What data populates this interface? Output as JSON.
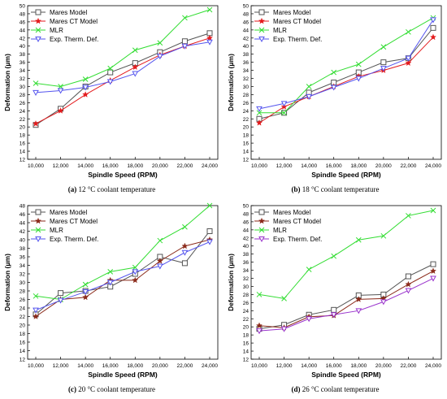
{
  "chart_data": [
    {
      "type": "line",
      "caption_label": "(a)",
      "caption_text": "12 °C coolant temperature",
      "xlabel": "Spindle Speed (RPM)",
      "ylabel": "Deformation (μm)",
      "ylim": [
        12,
        50
      ],
      "yticks": [
        12,
        14,
        16,
        18,
        20,
        22,
        24,
        26,
        28,
        30,
        32,
        34,
        36,
        38,
        40,
        42,
        44,
        46,
        48,
        50
      ],
      "x": [
        "10,000",
        "12,000",
        "14,000",
        "16,000",
        "18,000",
        "20,000",
        "22,000",
        "24,000"
      ],
      "legend_position": "top-left",
      "series": [
        {
          "name": "Mares Model",
          "color": "#555555",
          "marker": "square",
          "values": [
            20.5,
            24.5,
            30.0,
            33.5,
            35.8,
            38.5,
            41.2,
            43.2
          ]
        },
        {
          "name": "Mares CT Model",
          "color": "#e41a1c",
          "marker": "star",
          "values": [
            20.8,
            24.0,
            28.0,
            31.5,
            34.8,
            37.8,
            40.0,
            42.0
          ]
        },
        {
          "name": "MLR",
          "color": "#33dd33",
          "marker": "cross",
          "values": [
            30.8,
            30.0,
            31.8,
            34.5,
            39.0,
            40.8,
            47.0,
            49.0
          ]
        },
        {
          "name": "Exp. Therm. Def.",
          "color": "#5555ee",
          "marker": "triangle-down",
          "values": [
            28.5,
            29.0,
            29.8,
            31.2,
            33.2,
            37.5,
            40.0,
            41.0
          ]
        }
      ]
    },
    {
      "type": "line",
      "caption_label": "(b)",
      "caption_text": "18 °C coolant temperature",
      "xlabel": "Spindle Speed (RPM)",
      "ylabel": "Deformation (μm)",
      "ylim": [
        12,
        50
      ],
      "yticks": [
        12,
        14,
        16,
        18,
        20,
        22,
        24,
        26,
        28,
        30,
        32,
        34,
        36,
        38,
        40,
        42,
        44,
        46,
        48,
        50
      ],
      "x": [
        "10,000",
        "12,000",
        "14,000",
        "16,000",
        "18,000",
        "20,000",
        "22,000",
        "24,000"
      ],
      "legend_position": "top-left",
      "series": [
        {
          "name": "Mares Model",
          "color": "#555555",
          "marker": "square",
          "values": [
            22.0,
            23.5,
            28.5,
            31.0,
            33.5,
            36.0,
            37.0,
            44.5
          ]
        },
        {
          "name": "Mares CT Model",
          "color": "#e41a1c",
          "marker": "star",
          "values": [
            21.0,
            25.0,
            27.5,
            30.0,
            32.5,
            34.0,
            35.8,
            42.2
          ]
        },
        {
          "name": "MLR",
          "color": "#33dd33",
          "marker": "cross",
          "values": [
            23.5,
            23.5,
            30.0,
            33.5,
            35.5,
            39.8,
            43.5,
            47.0
          ]
        },
        {
          "name": "Exp. Therm. Def.",
          "color": "#5555ee",
          "marker": "triangle-down",
          "values": [
            24.5,
            25.8,
            27.5,
            29.8,
            32.0,
            34.5,
            37.0,
            46.5
          ]
        }
      ]
    },
    {
      "type": "line",
      "caption_label": "(c)",
      "caption_text": "20 °C coolant temperature",
      "xlabel": "Spindle Speed (RPM)",
      "ylabel": "Deformation (μm)",
      "ylim": [
        12,
        48
      ],
      "yticks": [
        12,
        14,
        16,
        18,
        20,
        22,
        24,
        26,
        28,
        30,
        32,
        34,
        36,
        38,
        40,
        42,
        44,
        46,
        48
      ],
      "x": [
        "10,000",
        "12,000",
        "14,000",
        "16,000",
        "18,000",
        "20,000",
        "22,000",
        "24,000"
      ],
      "legend_position": "top-left",
      "series": [
        {
          "name": "Mares Model",
          "color": "#555555",
          "marker": "square",
          "values": [
            22.5,
            27.5,
            28.0,
            29.0,
            32.0,
            36.0,
            34.5,
            42.0
          ]
        },
        {
          "name": "Mares CT Model",
          "color": "#8b2a1a",
          "marker": "star",
          "values": [
            22.0,
            26.0,
            26.5,
            30.5,
            30.5,
            35.0,
            38.5,
            40.0
          ]
        },
        {
          "name": "MLR",
          "color": "#33dd33",
          "marker": "cross",
          "values": [
            26.8,
            26.0,
            29.5,
            32.5,
            33.5,
            39.8,
            43.0,
            48.0
          ]
        },
        {
          "name": "Exp. Therm. Def.",
          "color": "#5555ee",
          "marker": "triangle-down",
          "values": [
            23.5,
            25.8,
            27.8,
            30.0,
            32.5,
            33.8,
            37.0,
            39.5
          ]
        }
      ]
    },
    {
      "type": "line",
      "caption_label": "(d)",
      "caption_text": "26 °C coolant temperature",
      "xlabel": "Spindle Speed (RPM)",
      "ylabel": "Deformation (μm)",
      "ylim": [
        12,
        50
      ],
      "yticks": [
        12,
        14,
        16,
        18,
        20,
        22,
        24,
        26,
        28,
        30,
        32,
        34,
        36,
        38,
        40,
        42,
        44,
        46,
        48,
        50
      ],
      "x": [
        "10,000",
        "12,000",
        "14,000",
        "16,000",
        "18,000",
        "20,000",
        "22,000",
        "24,000"
      ],
      "legend_position": "top-left",
      "series": [
        {
          "name": "Mares Model",
          "color": "#555555",
          "marker": "square",
          "values": [
            19.5,
            20.5,
            23.0,
            24.2,
            27.8,
            28.0,
            32.5,
            35.5
          ]
        },
        {
          "name": "Mares CT Model",
          "color": "#8b2a1a",
          "marker": "star",
          "values": [
            20.3,
            19.8,
            22.5,
            22.8,
            26.8,
            27.0,
            30.5,
            33.8
          ]
        },
        {
          "name": "MLR",
          "color": "#33dd33",
          "marker": "cross",
          "values": [
            28.0,
            27.0,
            34.2,
            37.5,
            41.5,
            42.5,
            47.5,
            48.8
          ]
        },
        {
          "name": "Exp. Therm. Def.",
          "color": "#9933cc",
          "marker": "triangle-down",
          "values": [
            19.0,
            19.5,
            22.0,
            23.0,
            24.0,
            26.2,
            29.0,
            32.0
          ]
        }
      ]
    }
  ]
}
